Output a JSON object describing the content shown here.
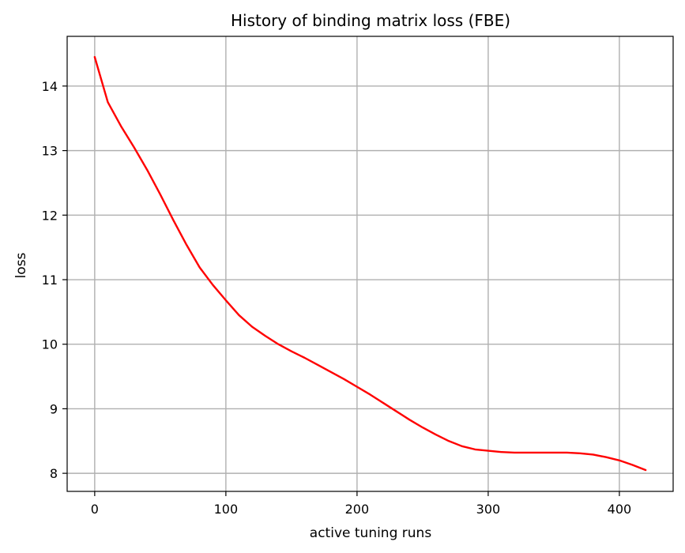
{
  "chart_data": {
    "type": "line",
    "title": "History of binding matrix loss (FBE)",
    "xlabel": "active tuning runs",
    "ylabel": "loss",
    "xlim": [
      -21,
      441
    ],
    "ylim": [
      7.72,
      14.77
    ],
    "xticks": [
      0,
      100,
      200,
      300,
      400
    ],
    "yticks": [
      8,
      9,
      10,
      11,
      12,
      13,
      14
    ],
    "grid": true,
    "colors": {
      "line": "#ff0000"
    },
    "series": [
      {
        "x": [
          0,
          10,
          20,
          30,
          40,
          50,
          60,
          70,
          80,
          90,
          100,
          110,
          120,
          130,
          140,
          150,
          160,
          170,
          180,
          190,
          200,
          210,
          220,
          230,
          240,
          250,
          260,
          270,
          280,
          290,
          300,
          310,
          320,
          330,
          340,
          350,
          360,
          370,
          380,
          390,
          400,
          410,
          420
        ],
        "values": [
          14.45,
          13.75,
          13.38,
          13.05,
          12.7,
          12.32,
          11.92,
          11.54,
          11.19,
          10.92,
          10.68,
          10.45,
          10.27,
          10.13,
          10.0,
          9.89,
          9.79,
          9.68,
          9.57,
          9.46,
          9.34,
          9.22,
          9.09,
          8.96,
          8.83,
          8.71,
          8.6,
          8.5,
          8.42,
          8.37,
          8.35,
          8.33,
          8.32,
          8.32,
          8.32,
          8.32,
          8.32,
          8.31,
          8.29,
          8.25,
          8.2,
          8.13,
          8.05
        ]
      }
    ]
  }
}
